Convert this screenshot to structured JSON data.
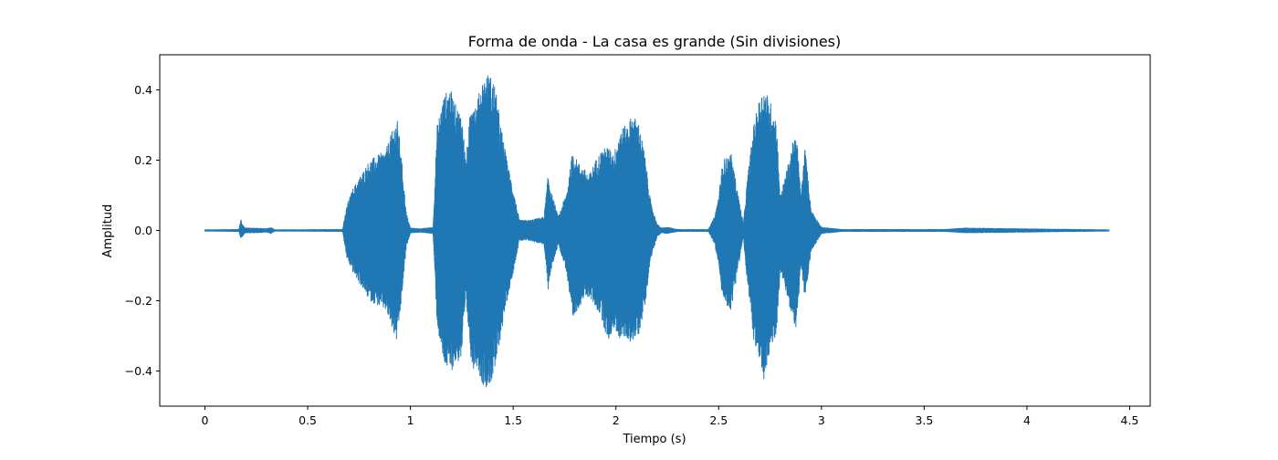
{
  "chart_data": {
    "type": "line",
    "title": "Forma de onda - La casa es grande (Sin divisiones)",
    "xlabel": "Tiempo (s)",
    "ylabel": "Amplitud",
    "xlim": [
      -0.22,
      4.6
    ],
    "ylim": [
      -0.5,
      0.5
    ],
    "xticks": [
      0,
      0.5,
      1,
      1.5,
      2,
      2.5,
      3,
      3.5,
      4,
      4.5
    ],
    "xtick_labels": [
      "0",
      "0.5",
      "1",
      "1.5",
      "2",
      "2.5",
      "3",
      "3.5",
      "4",
      "4.5"
    ],
    "yticks": [
      -0.4,
      -0.2,
      0.0,
      0.2,
      0.4
    ],
    "ytick_labels": [
      "−0.4",
      "−0.2",
      "0.0",
      "0.2",
      "0.4"
    ],
    "grid": false,
    "colors": {
      "series": "#1f77b4"
    },
    "series": [
      {
        "duration": 4.4,
        "envelope": {
          "t": [
            0.0,
            0.165,
            0.175,
            0.18,
            0.195,
            0.24,
            0.3,
            0.32,
            0.34,
            0.67,
            0.69,
            0.72,
            0.8,
            0.88,
            0.92,
            0.935,
            0.95,
            0.98,
            1.0,
            1.05,
            1.11,
            1.13,
            1.16,
            1.19,
            1.22,
            1.25,
            1.27,
            1.3,
            1.32,
            1.35,
            1.38,
            1.41,
            1.44,
            1.47,
            1.5,
            1.53,
            1.58,
            1.65,
            1.67,
            1.69,
            1.72,
            1.76,
            1.79,
            1.81,
            1.84,
            1.87,
            1.9,
            1.93,
            1.96,
            1.99,
            2.02,
            2.05,
            2.08,
            2.11,
            2.14,
            2.17,
            2.2,
            2.22,
            2.25,
            2.3,
            2.45,
            2.48,
            2.5,
            2.52,
            2.56,
            2.62,
            2.64,
            2.67,
            2.7,
            2.72,
            2.75,
            2.78,
            2.8,
            2.83,
            2.86,
            2.88,
            2.9,
            2.92,
            2.95,
            3.0,
            3.1,
            3.6,
            3.7,
            4.4
          ],
          "pos": [
            0.003,
            0.004,
            0.035,
            0.02,
            0.008,
            0.008,
            0.006,
            0.01,
            0.003,
            0.004,
            0.07,
            0.12,
            0.2,
            0.23,
            0.3,
            0.32,
            0.25,
            0.05,
            0.008,
            0.006,
            0.01,
            0.3,
            0.38,
            0.41,
            0.36,
            0.33,
            0.2,
            0.4,
            0.36,
            0.43,
            0.45,
            0.42,
            0.3,
            0.2,
            0.12,
            0.03,
            0.03,
            0.04,
            0.16,
            0.1,
            0.04,
            0.11,
            0.23,
            0.2,
            0.18,
            0.16,
            0.2,
            0.23,
            0.24,
            0.22,
            0.29,
            0.3,
            0.33,
            0.31,
            0.22,
            0.08,
            0.02,
            0.008,
            0.01,
            0.004,
            0.004,
            0.04,
            0.1,
            0.2,
            0.22,
            0.02,
            0.15,
            0.3,
            0.38,
            0.41,
            0.37,
            0.32,
            0.1,
            0.17,
            0.25,
            0.27,
            0.1,
            0.24,
            0.06,
            0.01,
            0.004,
            0.004,
            0.008,
            0.003
          ],
          "neg": [
            0.003,
            0.004,
            0.025,
            0.02,
            0.008,
            0.008,
            0.006,
            0.01,
            0.003,
            0.004,
            0.08,
            0.12,
            0.2,
            0.23,
            0.3,
            0.32,
            0.24,
            0.05,
            0.008,
            0.006,
            0.01,
            0.27,
            0.38,
            0.41,
            0.38,
            0.37,
            0.2,
            0.4,
            0.38,
            0.44,
            0.45,
            0.41,
            0.3,
            0.2,
            0.12,
            0.03,
            0.03,
            0.04,
            0.17,
            0.1,
            0.04,
            0.12,
            0.27,
            0.23,
            0.2,
            0.19,
            0.22,
            0.25,
            0.32,
            0.28,
            0.31,
            0.31,
            0.32,
            0.3,
            0.22,
            0.08,
            0.02,
            0.008,
            0.01,
            0.004,
            0.004,
            0.04,
            0.1,
            0.2,
            0.23,
            0.02,
            0.16,
            0.31,
            0.4,
            0.43,
            0.35,
            0.3,
            0.12,
            0.18,
            0.26,
            0.28,
            0.1,
            0.2,
            0.06,
            0.01,
            0.004,
            0.004,
            0.008,
            0.003
          ]
        }
      }
    ]
  }
}
